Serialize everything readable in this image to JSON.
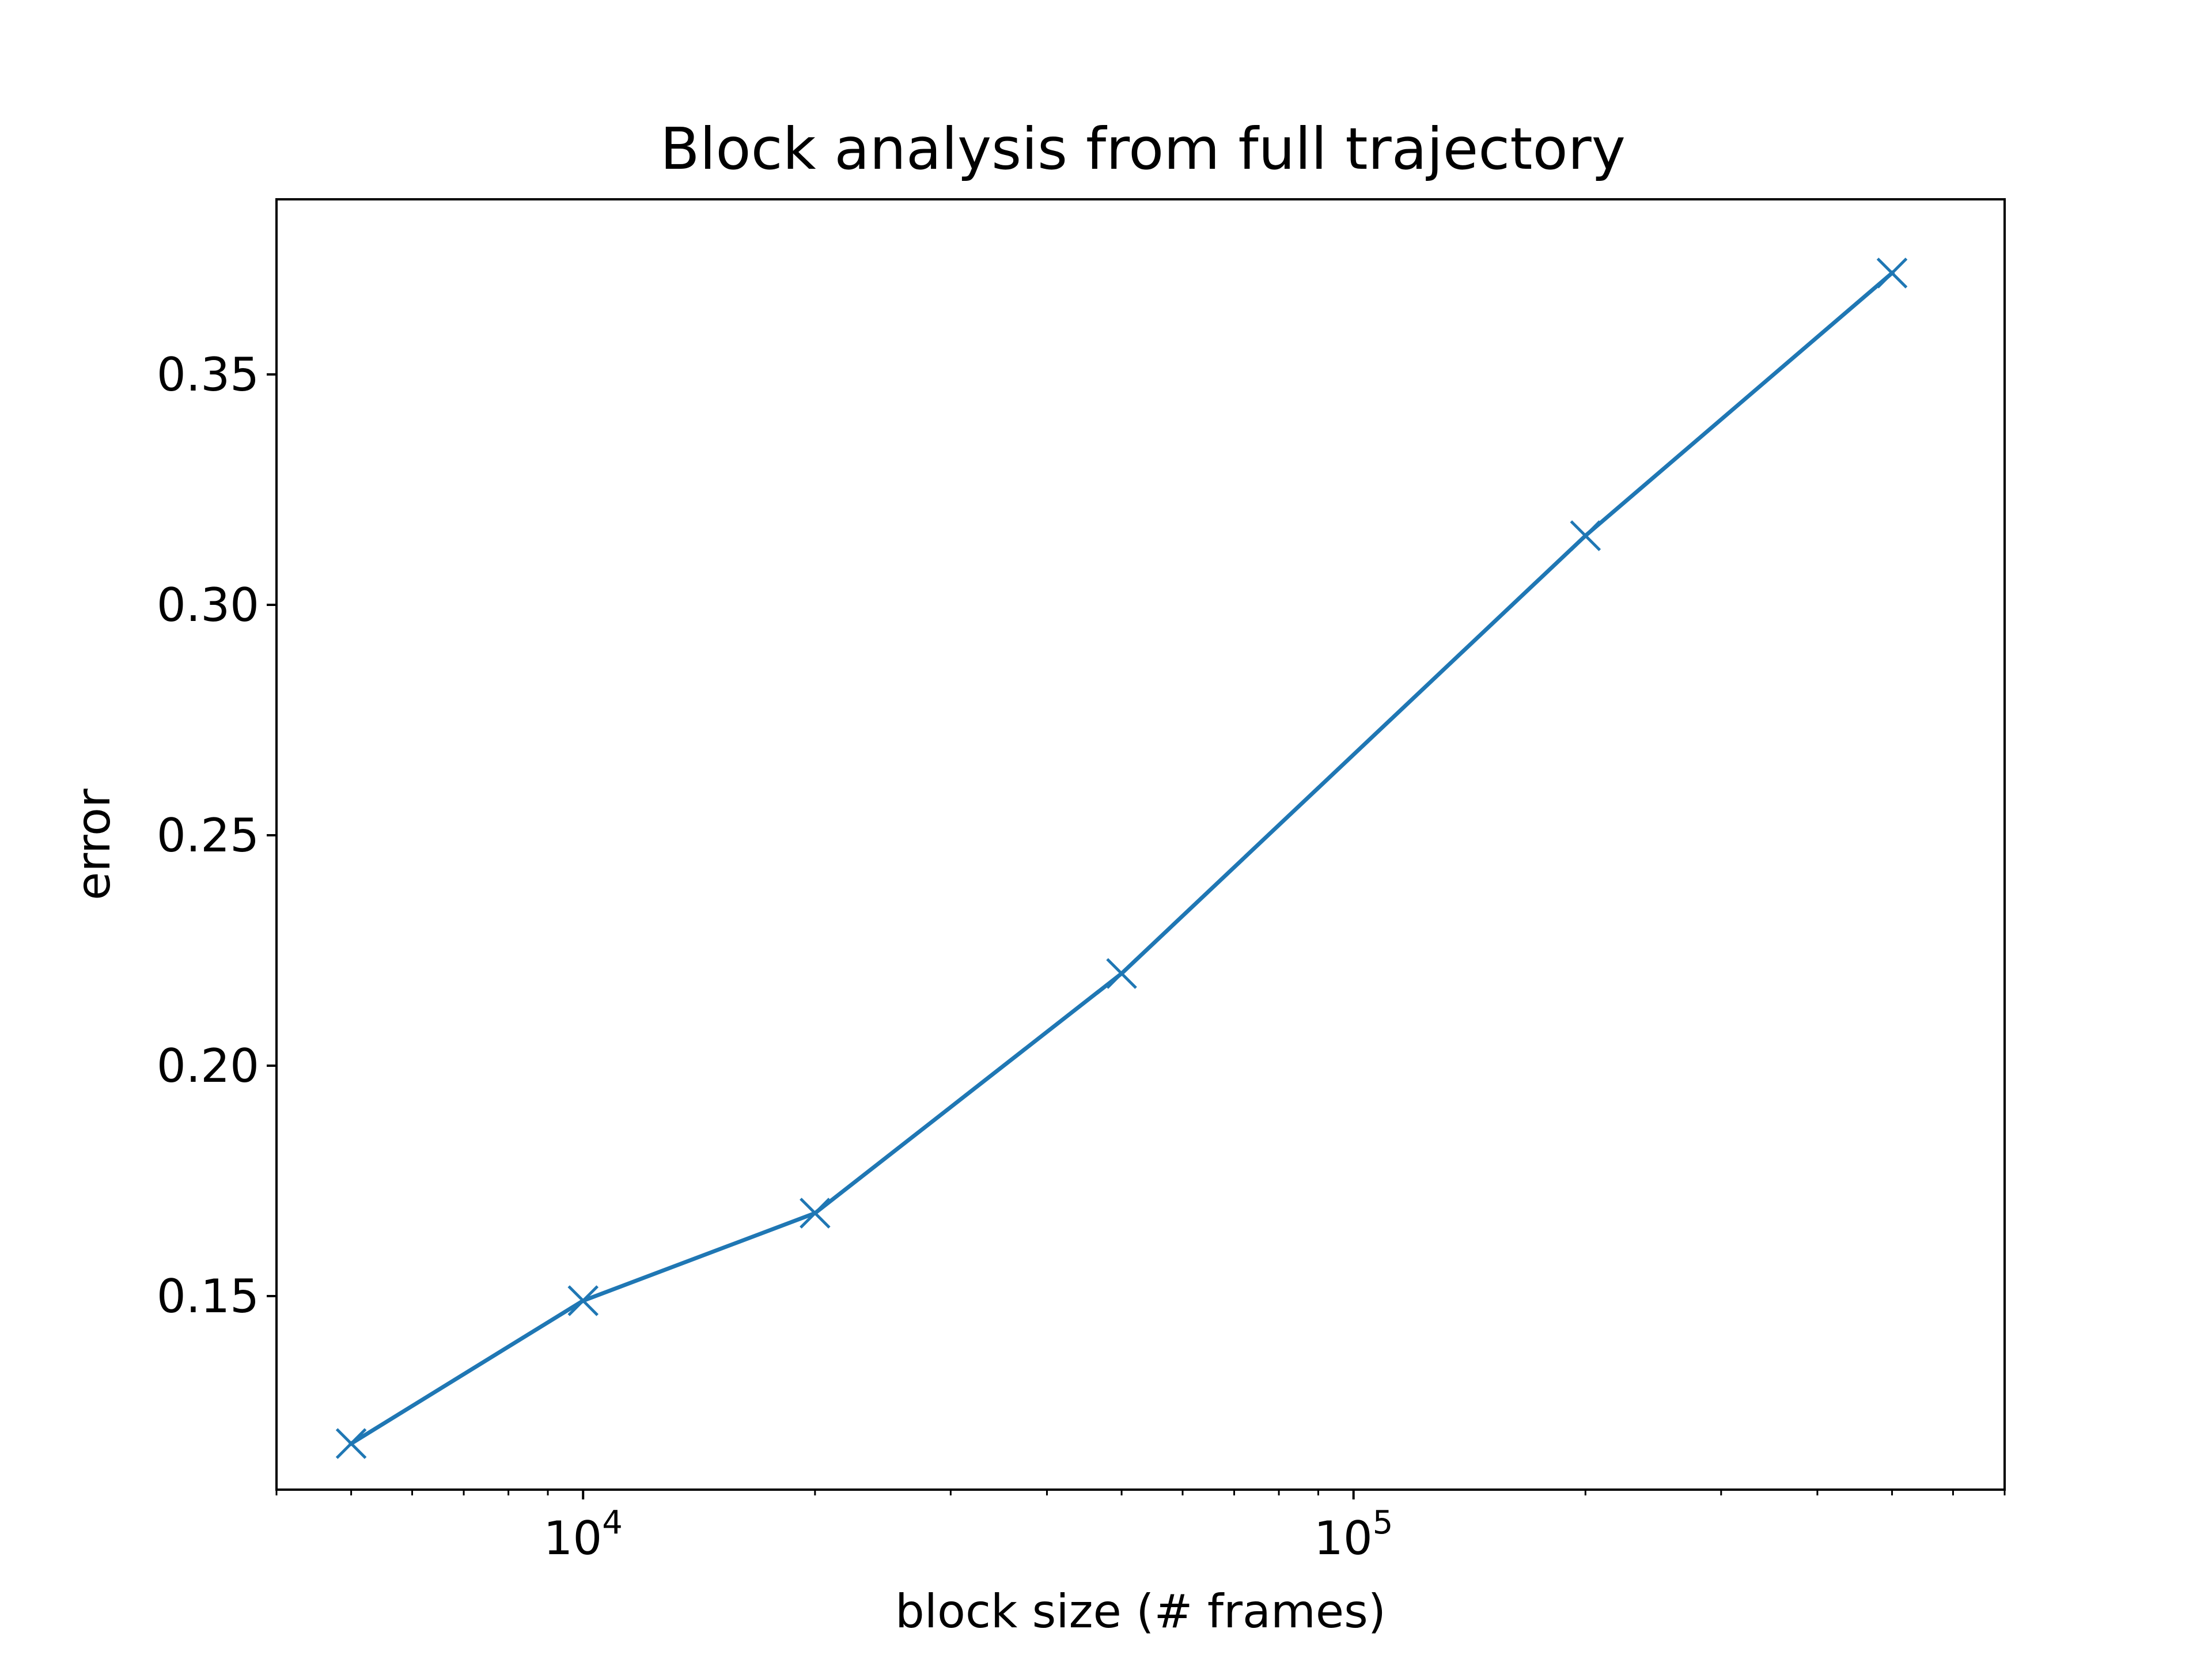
{
  "chart_data": {
    "type": "line",
    "title": "Block analysis from full trajectory",
    "xlabel": "block size (# frames)",
    "ylabel": "error",
    "xscale": "log",
    "xlim": [
      4000,
      700000
    ],
    "ylim": [
      0.108,
      0.388
    ],
    "grid": false,
    "legend": "none",
    "x_ticks": [
      {
        "value": 10000,
        "base": "10",
        "exp": "4"
      },
      {
        "value": 100000,
        "base": "10",
        "exp": "5"
      }
    ],
    "y_ticks": [
      {
        "value": 0.15,
        "label": "0.15"
      },
      {
        "value": 0.2,
        "label": "0.20"
      },
      {
        "value": 0.25,
        "label": "0.25"
      },
      {
        "value": 0.3,
        "label": "0.30"
      },
      {
        "value": 0.35,
        "label": "0.35"
      }
    ],
    "series": [
      {
        "color": "#1f77b4",
        "marker": "x",
        "x": [
          5000,
          10000,
          20000,
          50000,
          200000,
          500000
        ],
        "y": [
          0.118,
          0.149,
          0.168,
          0.22,
          0.315,
          0.372
        ]
      }
    ]
  }
}
